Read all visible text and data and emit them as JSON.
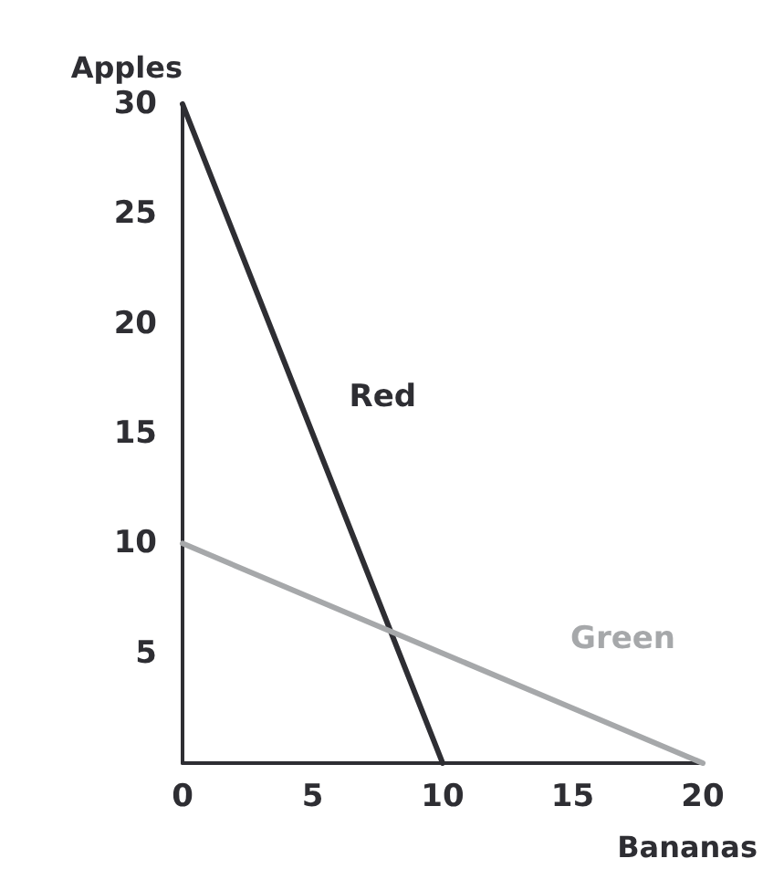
{
  "chart_data": {
    "type": "line",
    "xlabel": "Bananas",
    "ylabel": "Apples",
    "series": [
      {
        "name": "Red",
        "color": "#2e2e33",
        "x": [
          0,
          10
        ],
        "values": [
          30,
          0
        ]
      },
      {
        "name": "Green",
        "color": "#a6a8aa",
        "x": [
          0,
          20
        ],
        "values": [
          10,
          0
        ]
      }
    ],
    "xlim": [
      0,
      20
    ],
    "xticks": [
      0,
      5,
      10,
      15,
      20
    ],
    "ylim": [
      0,
      30
    ],
    "yticks": [
      5,
      10,
      15,
      20,
      25,
      30
    ],
    "grid": false,
    "legend": false,
    "marker": "none",
    "line_style": "solid"
  }
}
